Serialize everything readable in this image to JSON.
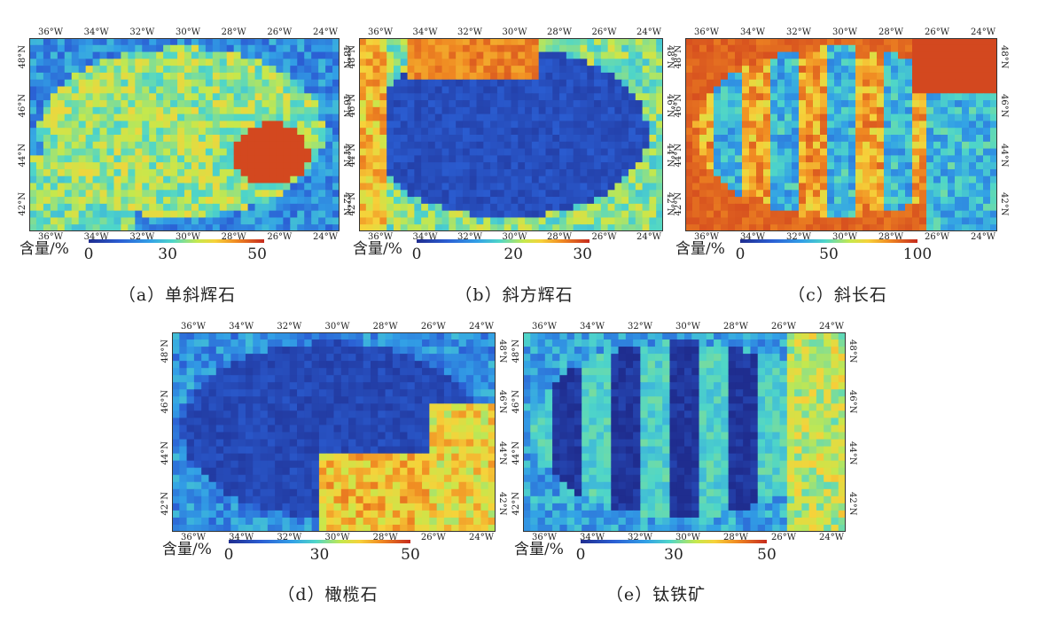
{
  "lon_labels": [
    "36°W",
    "34°W",
    "32°W",
    "30°W",
    "28°W",
    "26°W",
    "24°W"
  ],
  "lat_labels": [
    "48°N",
    "46°N",
    "44°N",
    "42°N"
  ],
  "legend_label": "含量/%",
  "colors": {
    "low": "#1f2d8f",
    "mid": "#4fd6c8",
    "high": "#c62a1d"
  },
  "panels": [
    {
      "id": "a",
      "caption": "（a）单斜辉石",
      "ticks": [
        "0",
        "30",
        "50"
      ]
    },
    {
      "id": "b",
      "caption": "（b）斜方辉石",
      "ticks": [
        "0",
        "20",
        "30"
      ]
    },
    {
      "id": "c",
      "caption": "（c）斜长石",
      "ticks": [
        "0",
        "50",
        "100"
      ]
    },
    {
      "id": "d",
      "caption": "（d）橄榄石",
      "ticks": [
        "0",
        "30",
        "50"
      ]
    },
    {
      "id": "e",
      "caption": "（e）钛铁矿",
      "ticks": [
        "0",
        "30",
        "50"
      ]
    }
  ]
}
